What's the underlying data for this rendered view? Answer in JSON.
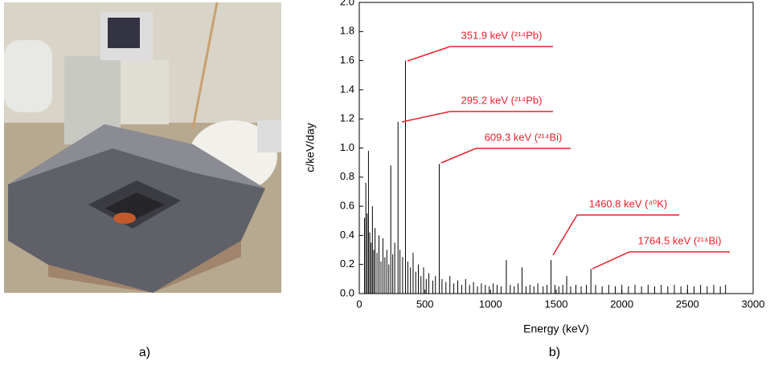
{
  "figure": {
    "caption_a": "a)",
    "caption_b": "b)"
  },
  "chart_data": {
    "type": "spectrum",
    "x_label": "Energy (keV)",
    "y_label": "c/keV/day",
    "x": [
      40,
      50,
      60,
      70,
      80,
      90,
      100,
      110,
      120,
      135,
      150,
      165,
      180,
      195,
      210,
      225,
      240,
      255,
      270,
      295.2,
      310,
      330,
      351.9,
      370,
      390,
      410,
      430,
      450,
      470,
      490,
      510,
      530,
      560,
      580,
      609.3,
      630,
      660,
      690,
      720,
      750,
      780,
      810,
      840,
      870,
      900,
      930,
      960,
      990,
      1020,
      1050,
      1080,
      1120,
      1150,
      1180,
      1210,
      1240,
      1270,
      1300,
      1330,
      1360,
      1400,
      1430,
      1460.8,
      1490,
      1520,
      1550,
      1580,
      1610,
      1650,
      1690,
      1730,
      1764.5,
      1800,
      1850,
      1900,
      1950,
      2000,
      2050,
      2100,
      2150,
      2200,
      2250,
      2300,
      2350,
      2400,
      2450,
      2500,
      2550,
      2600,
      2650,
      2700,
      2750,
      2790
    ],
    "values": [
      0.52,
      0.76,
      0.55,
      0.98,
      0.42,
      0.35,
      0.6,
      0.3,
      0.45,
      0.28,
      0.4,
      0.22,
      0.38,
      0.25,
      0.3,
      0.2,
      0.88,
      0.27,
      0.35,
      1.18,
      0.3,
      0.25,
      1.6,
      0.22,
      0.18,
      0.28,
      0.15,
      0.2,
      0.12,
      0.18,
      0.1,
      0.14,
      0.09,
      0.12,
      0.89,
      0.1,
      0.08,
      0.12,
      0.07,
      0.09,
      0.06,
      0.1,
      0.06,
      0.08,
      0.05,
      0.07,
      0.06,
      0.05,
      0.07,
      0.06,
      0.05,
      0.23,
      0.06,
      0.05,
      0.07,
      0.18,
      0.05,
      0.06,
      0.05,
      0.07,
      0.05,
      0.06,
      0.23,
      0.06,
      0.05,
      0.06,
      0.12,
      0.05,
      0.06,
      0.05,
      0.06,
      0.17,
      0.06,
      0.05,
      0.06,
      0.05,
      0.06,
      0.05,
      0.06,
      0.05,
      0.06,
      0.05,
      0.06,
      0.05,
      0.06,
      0.05,
      0.06,
      0.05,
      0.06,
      0.05,
      0.06,
      0.05,
      0.06
    ],
    "color": "#000000",
    "xlim": [
      0,
      3000
    ],
    "xticks": [
      0,
      500,
      1000,
      1500,
      2000,
      2500,
      3000
    ],
    "ylim": [
      0,
      2.0
    ],
    "yticks": [
      {
        "value": 0,
        "label": "0.0"
      },
      0.2,
      0.4,
      0.6,
      0.8,
      {
        "value": 1,
        "label": "1.0"
      },
      1.2,
      1.4,
      1.6,
      1.8,
      {
        "value": 2,
        "label": "2.0"
      }
    ],
    "annotations": [
      "351.9 keV (²¹⁴Pb)",
      "295.2 keV (²¹⁴Pb)",
      "609.3 keV (²¹⁴Bi)",
      "1460.8 keV (⁴⁰K)",
      "1764.5 keV (²¹⁴Bi)"
    ],
    "annotation_color": "#e8202a"
  }
}
